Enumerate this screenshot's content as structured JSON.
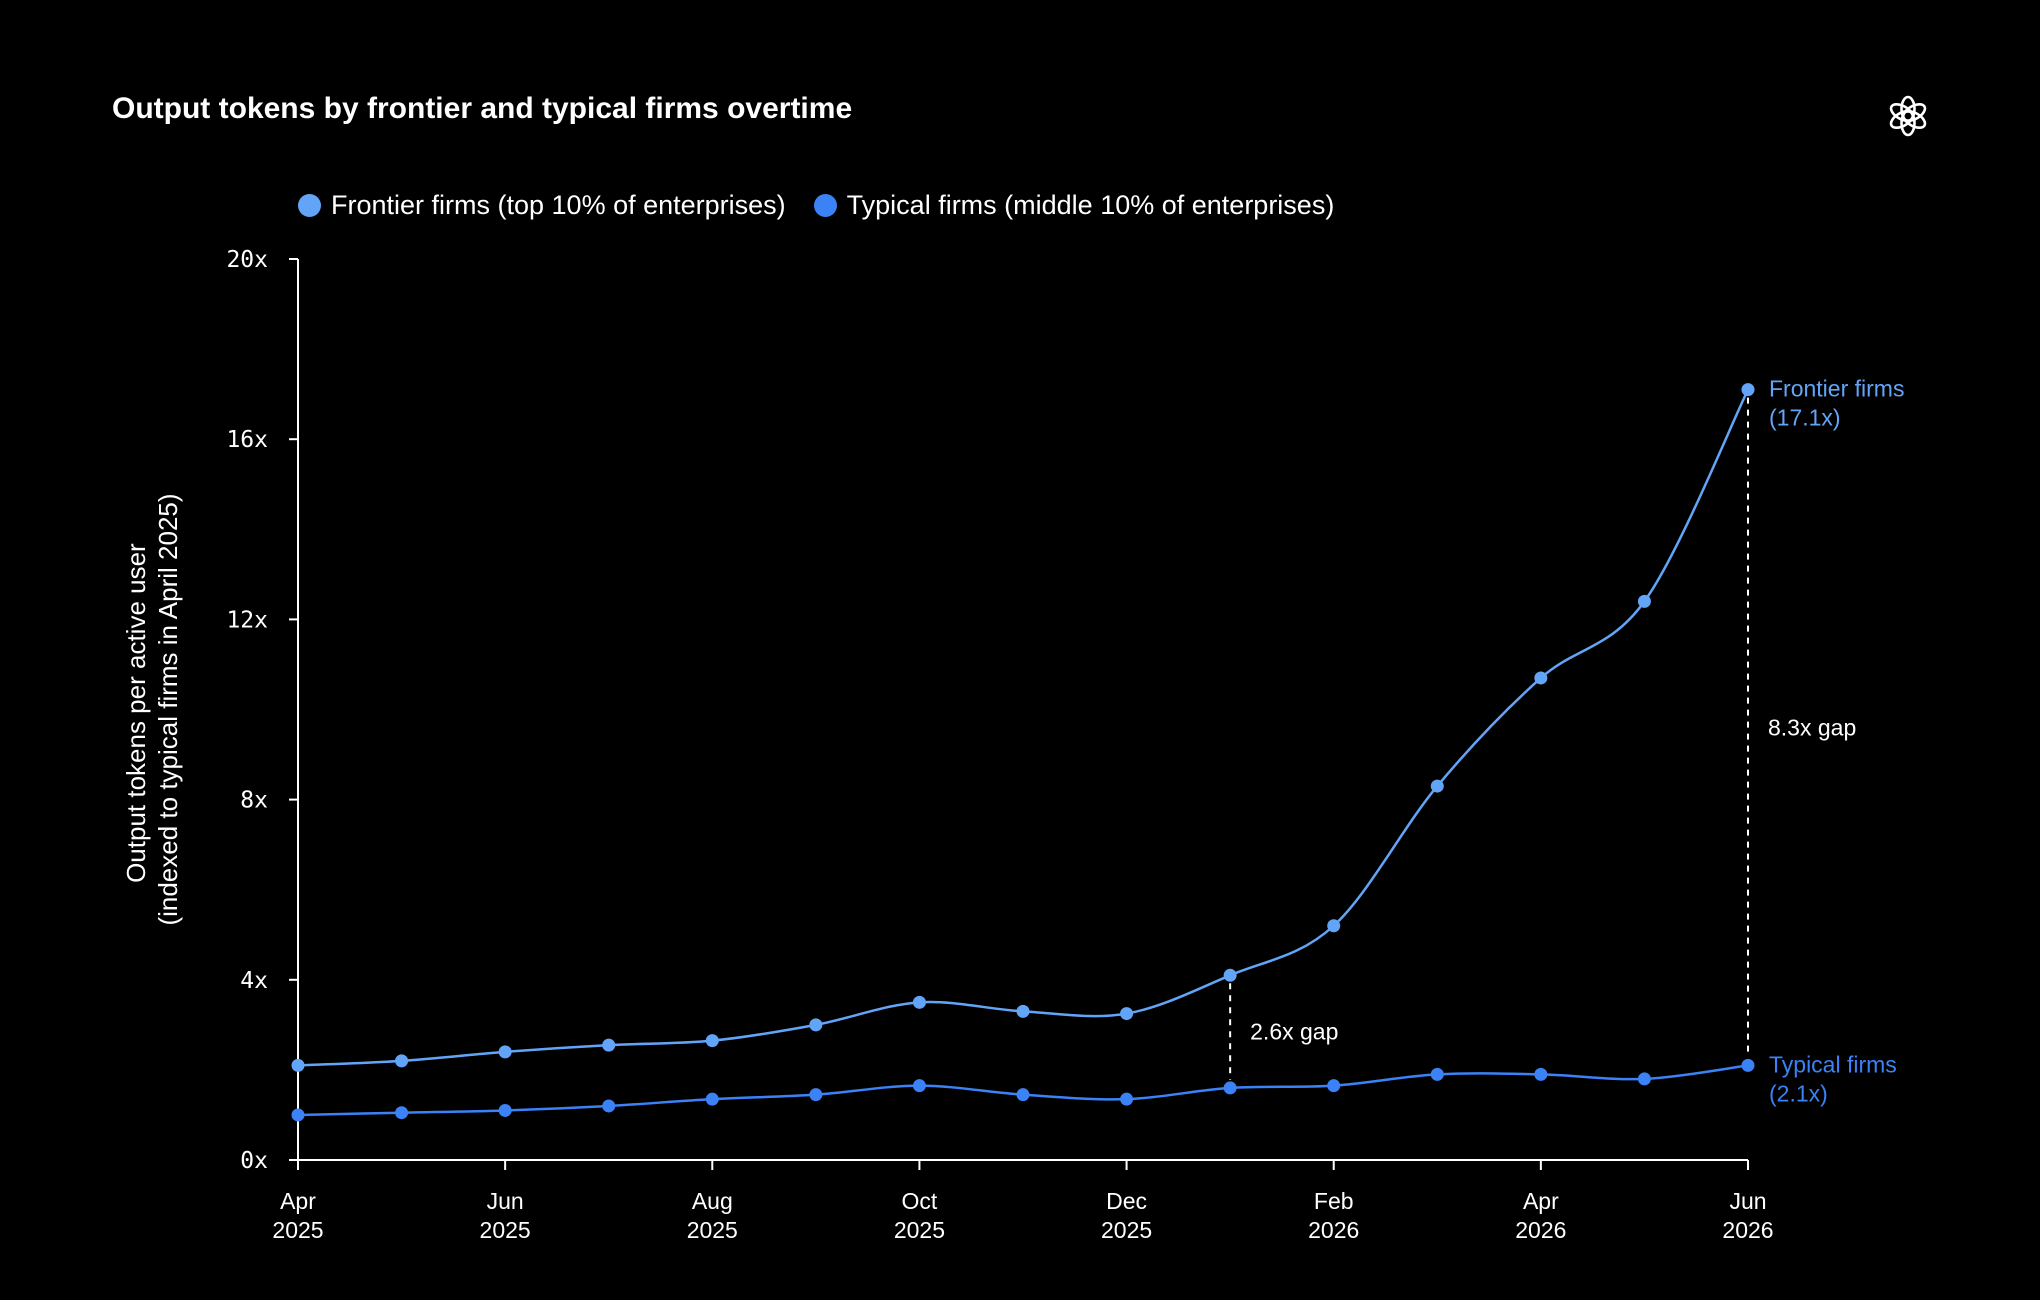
{
  "chart_data": {
    "type": "line",
    "title": "Output tokens by frontier and typical firms overtime",
    "ylabel_lines": [
      "Output tokens per active user",
      "(indexed to typical firms in April 2025)"
    ],
    "xlabel": "",
    "ylim": [
      0,
      20
    ],
    "yticks": [
      "0x",
      "4x",
      "8x",
      "12x",
      "16x",
      "20x"
    ],
    "x": [
      "2025-04",
      "2025-05",
      "2025-06",
      "2025-07",
      "2025-08",
      "2025-09",
      "2025-10",
      "2025-11",
      "2025-12",
      "2026-01",
      "2026-02",
      "2026-03",
      "2026-04",
      "2026-05",
      "2026-06"
    ],
    "xticks": [
      {
        "month": "Apr",
        "year": "2025"
      },
      {
        "month": "Jun",
        "year": "2025"
      },
      {
        "month": "Aug",
        "year": "2025"
      },
      {
        "month": "Oct",
        "year": "2025"
      },
      {
        "month": "Dec",
        "year": "2025"
      },
      {
        "month": "Feb",
        "year": "2026"
      },
      {
        "month": "Apr",
        "year": "2026"
      },
      {
        "month": "Jun",
        "year": "2026"
      }
    ],
    "legend_position": "top-left",
    "grid": false,
    "series": [
      {
        "name": "Frontier firms (top 10% of enterprises)",
        "color": "#62a5f8",
        "values": [
          2.1,
          2.2,
          2.4,
          2.55,
          2.65,
          3.0,
          3.5,
          3.3,
          3.25,
          4.1,
          5.2,
          8.3,
          10.7,
          12.4,
          17.1
        ],
        "end_label_line1": "Frontier firms",
        "end_label_line2": "(17.1x)"
      },
      {
        "name": "Typical firms (middle 10% of enterprises)",
        "color": "#3a82f6",
        "values": [
          1.0,
          1.05,
          1.1,
          1.2,
          1.35,
          1.45,
          1.65,
          1.45,
          1.35,
          1.6,
          1.65,
          1.9,
          1.9,
          1.8,
          2.1
        ],
        "end_label_line1": "Typical firms",
        "end_label_line2": "(2.1x)"
      }
    ],
    "annotations": [
      {
        "x": "2026-01",
        "text": "2.6x gap"
      },
      {
        "x": "2026-06",
        "text": "8.3x gap"
      }
    ]
  },
  "logo": {
    "icon": "openai-logo-icon"
  }
}
